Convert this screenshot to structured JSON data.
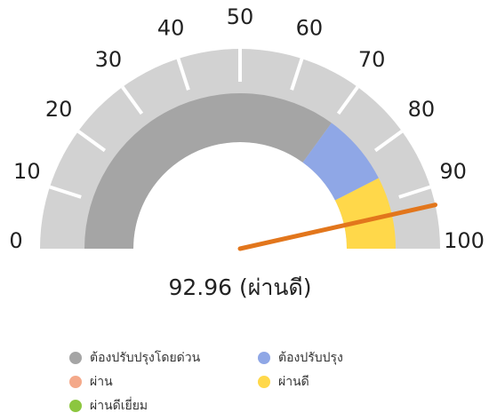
{
  "chart_data": {
    "type": "gauge",
    "xlim": [
      0,
      100
    ],
    "xticks": [
      0,
      10,
      20,
      30,
      40,
      50,
      60,
      70,
      80,
      90,
      100
    ],
    "value": 92.96,
    "value_label": "92.96 (ผ่านดี)",
    "needle_color": "#e2761c",
    "track_color": "#d2d2d2",
    "series": [
      {
        "name": "ต้องปรับปรุงโดยด่วน",
        "color": "#a5a5a5",
        "from": 0,
        "to": 70
      },
      {
        "name": "ต้องปรับปรุง",
        "color": "#8fa7e6",
        "from": 70,
        "to": 85
      },
      {
        "name": "ผ่าน",
        "color": "#f4a98a"
      },
      {
        "name": "ผ่านดี",
        "color": "#ffd84a",
        "from": 85,
        "to": 100
      },
      {
        "name": "ผ่านดีเยี่ยม",
        "color": "#8cc63f"
      }
    ]
  }
}
